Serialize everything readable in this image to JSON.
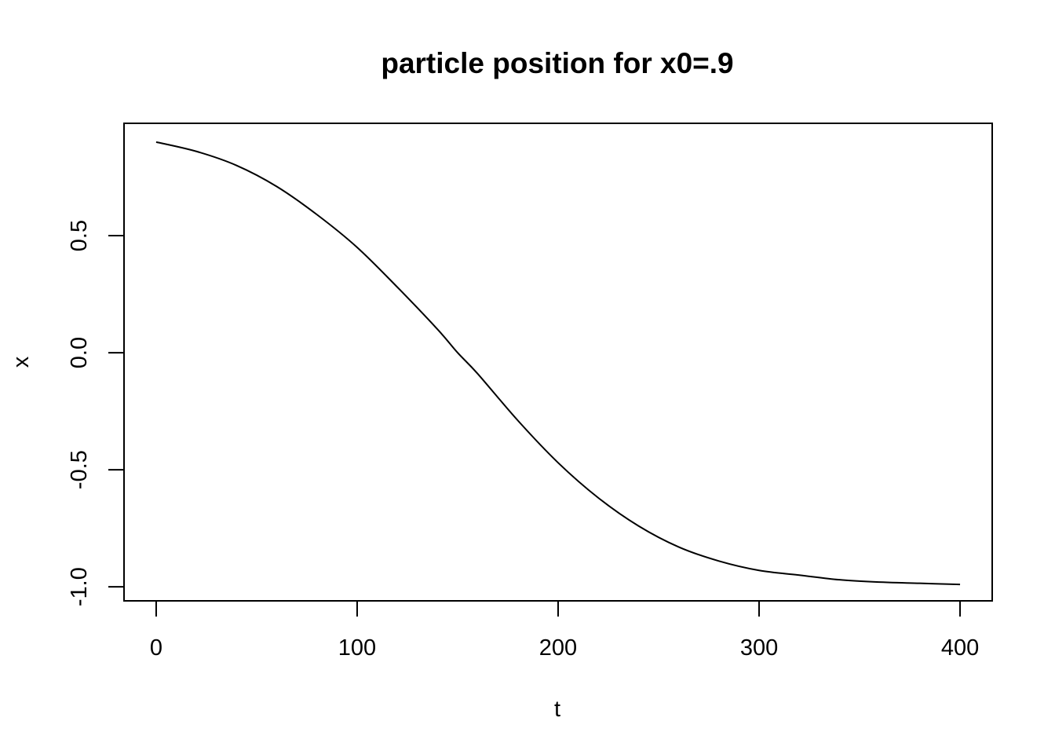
{
  "chart_data": {
    "type": "line",
    "title": "particle position for x0=.9",
    "xlabel": "t",
    "ylabel": "x",
    "xlim": [
      -16,
      416
    ],
    "ylim": [
      -1.06,
      0.98
    ],
    "x_ticks": [
      0,
      100,
      200,
      300,
      400
    ],
    "x_tick_labels": [
      "0",
      "100",
      "200",
      "300",
      "400"
    ],
    "y_ticks": [
      -1.0,
      -0.5,
      0.0,
      0.5
    ],
    "y_tick_labels": [
      "-1.0",
      "-0.5",
      "0.0",
      "0.5"
    ],
    "grid": false,
    "legend": "none",
    "line_color": "#000000",
    "series": [
      {
        "x": [
          0,
          20,
          40,
          60,
          80,
          100,
          120,
          140,
          150,
          160,
          180,
          200,
          220,
          240,
          260,
          280,
          300,
          320,
          340,
          360,
          380,
          400
        ],
        "y": [
          0.9,
          0.86,
          0.8,
          0.71,
          0.59,
          0.45,
          0.28,
          0.1,
          0.0,
          -0.09,
          -0.29,
          -0.47,
          -0.62,
          -0.74,
          -0.83,
          -0.89,
          -0.93,
          -0.95,
          -0.97,
          -0.98,
          -0.985,
          -0.99
        ]
      }
    ]
  }
}
